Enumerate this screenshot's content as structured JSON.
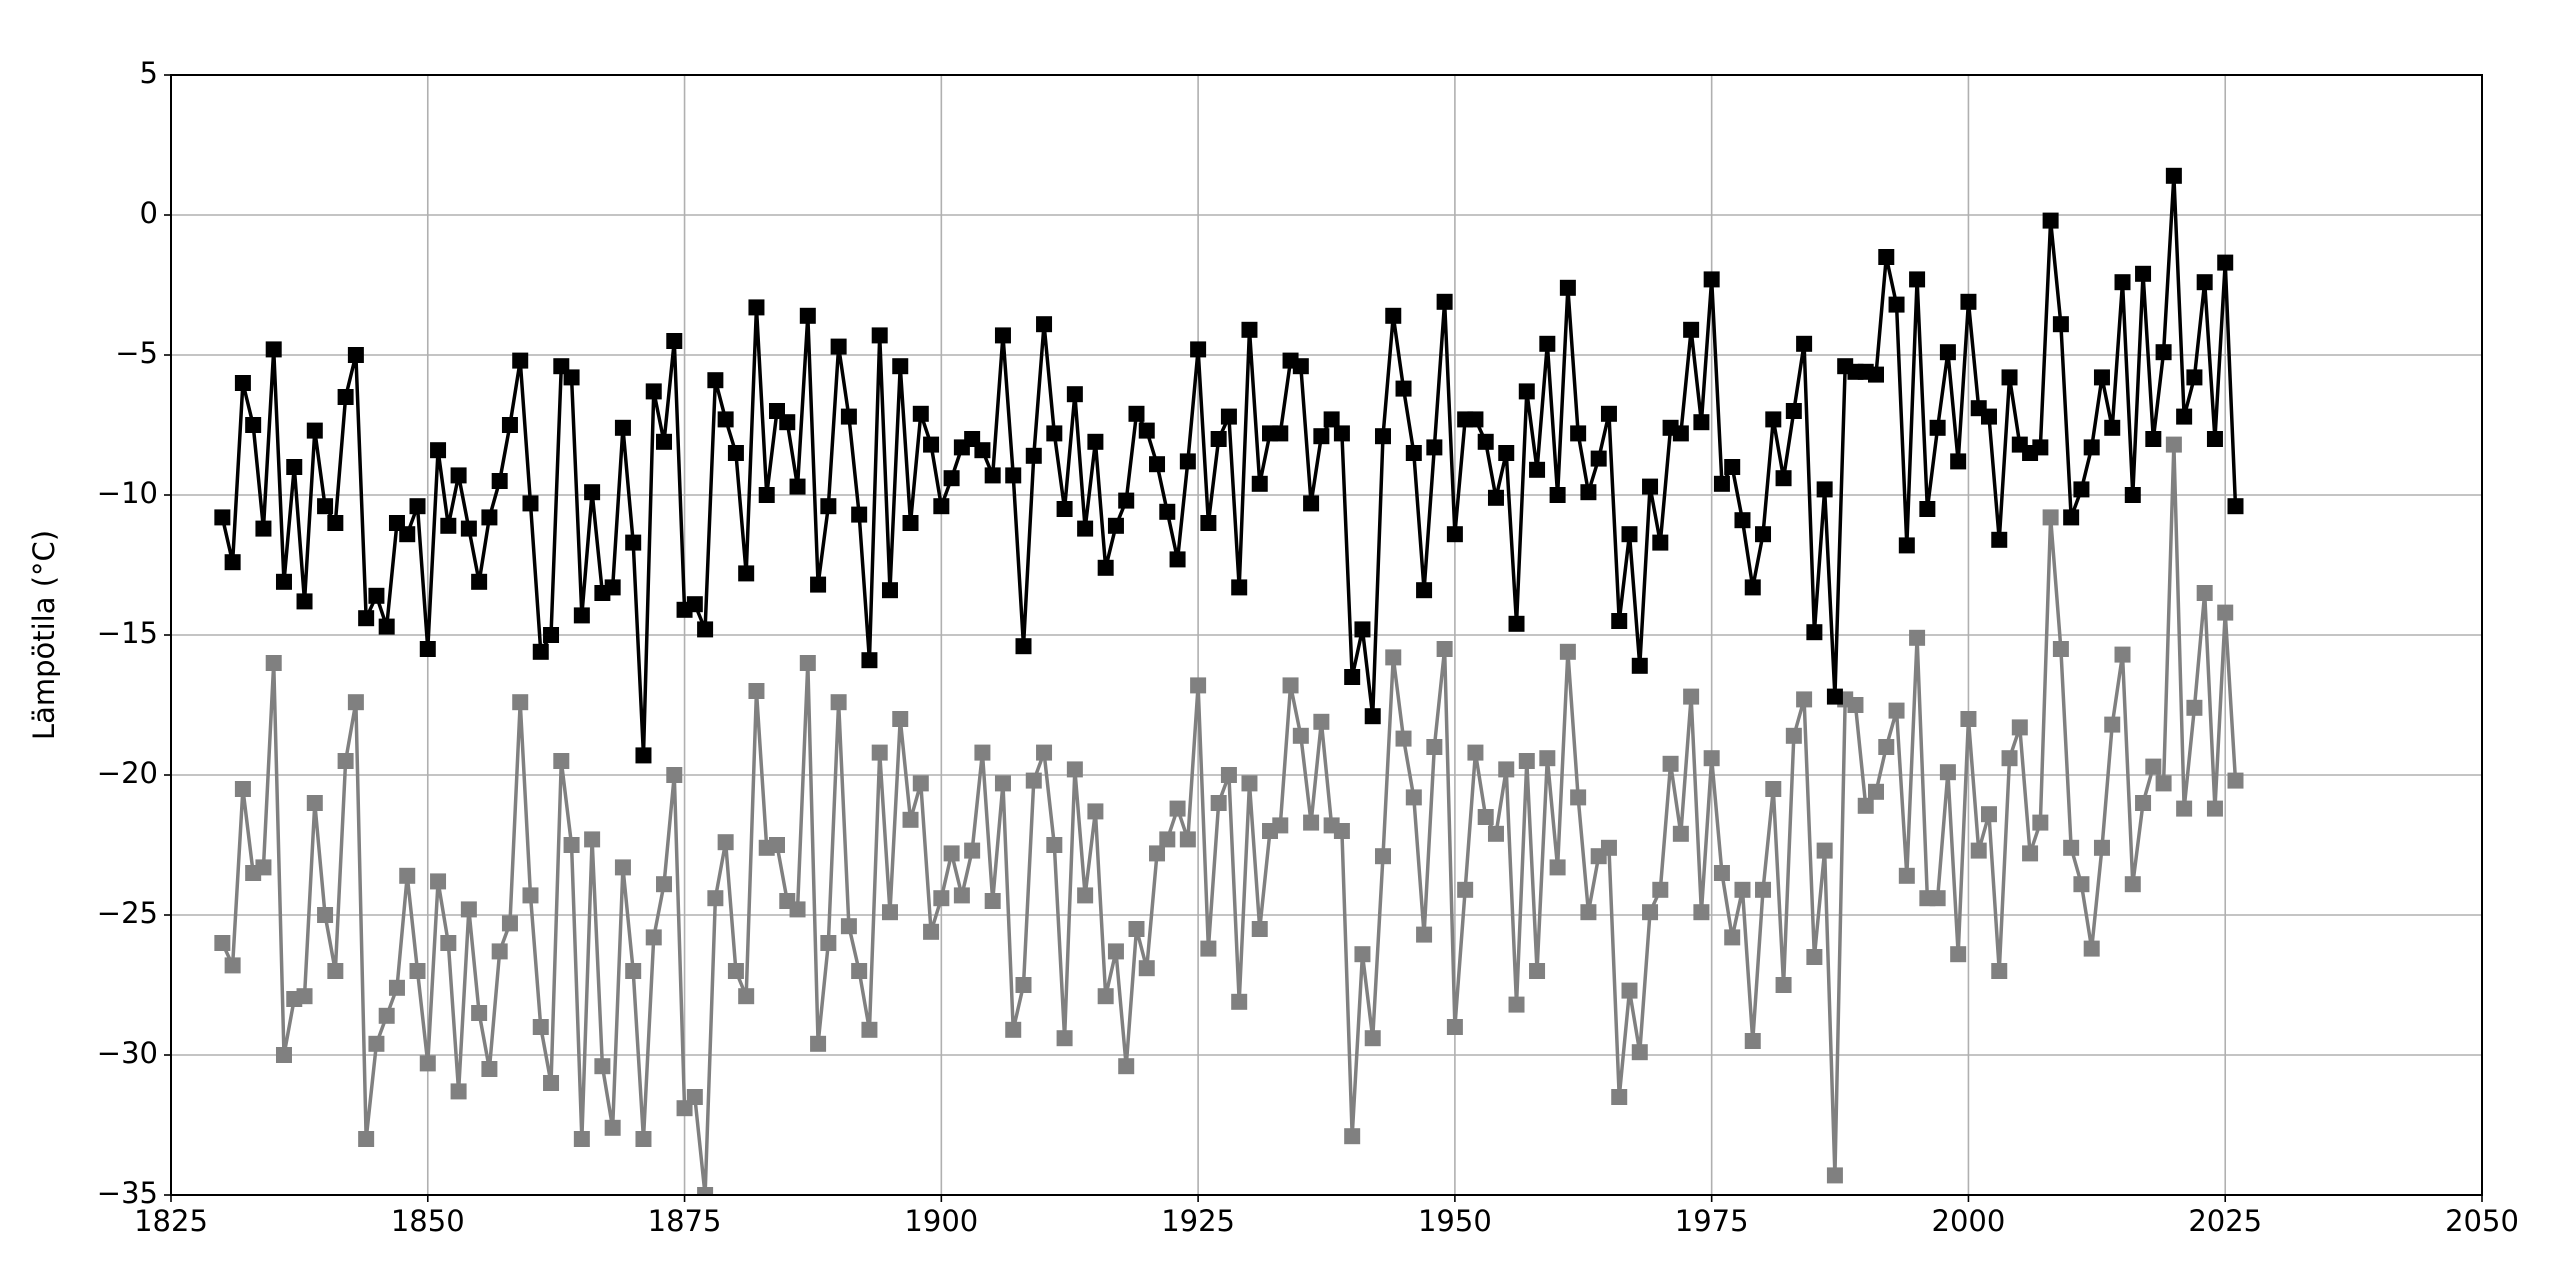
{
  "chart_data": {
    "type": "line",
    "y_label": "Lämpötila (°C)",
    "x": [
      1830,
      1831,
      1832,
      1833,
      1834,
      1835,
      1836,
      1837,
      1838,
      1839,
      1840,
      1841,
      1842,
      1843,
      1844,
      1845,
      1846,
      1847,
      1848,
      1849,
      1850,
      1851,
      1852,
      1853,
      1854,
      1855,
      1856,
      1857,
      1858,
      1859,
      1860,
      1861,
      1862,
      1863,
      1864,
      1865,
      1866,
      1867,
      1868,
      1869,
      1870,
      1871,
      1872,
      1873,
      1874,
      1875,
      1876,
      1877,
      1878,
      1879,
      1880,
      1881,
      1882,
      1883,
      1884,
      1885,
      1886,
      1887,
      1888,
      1889,
      1890,
      1891,
      1892,
      1893,
      1894,
      1895,
      1896,
      1897,
      1898,
      1899,
      1900,
      1901,
      1902,
      1903,
      1904,
      1905,
      1906,
      1907,
      1908,
      1909,
      1910,
      1911,
      1912,
      1913,
      1914,
      1915,
      1916,
      1917,
      1918,
      1919,
      1920,
      1921,
      1922,
      1923,
      1924,
      1925,
      1926,
      1927,
      1928,
      1929,
      1930,
      1931,
      1932,
      1933,
      1934,
      1935,
      1936,
      1937,
      1938,
      1939,
      1940,
      1941,
      1942,
      1943,
      1944,
      1945,
      1946,
      1947,
      1948,
      1949,
      1950,
      1951,
      1952,
      1953,
      1954,
      1955,
      1956,
      1957,
      1958,
      1959,
      1960,
      1961,
      1962,
      1963,
      1964,
      1965,
      1966,
      1967,
      1968,
      1969,
      1970,
      1971,
      1972,
      1973,
      1974,
      1975,
      1976,
      1977,
      1978,
      1979,
      1980,
      1981,
      1982,
      1983,
      1984,
      1985,
      1986,
      1987,
      1988,
      1989,
      1990,
      1991,
      1992,
      1993,
      1994,
      1995,
      1996,
      1997,
      1998,
      1999,
      2000,
      2001,
      2002,
      2003,
      2004,
      2005,
      2006,
      2007,
      2008,
      2009,
      2010,
      2011,
      2012,
      2013,
      2014,
      2015,
      2016,
      2017,
      2018,
      2019,
      2020,
      2021,
      2022,
      2023,
      2024,
      2025,
      2026
    ],
    "series": [
      {
        "color": "#808080",
        "values": [
          -26,
          -26.8,
          -20.5,
          -23.5,
          -23.3,
          -16,
          -30,
          -28,
          -27.9,
          -21,
          -25,
          -27,
          -19.5,
          -17.4,
          -33,
          -29.6,
          -28.6,
          -27.6,
          -23.6,
          -27,
          -30.3,
          -23.8,
          -26,
          -31.3,
          -24.8,
          -28.5,
          -30.5,
          -26.3,
          -25.3,
          -17.4,
          -24.3,
          -29,
          -31,
          -19.5,
          -22.5,
          -33,
          -22.3,
          -30.4,
          -32.6,
          -23.3,
          -27,
          -33,
          -25.8,
          -23.9,
          -20,
          -31.9,
          -31.5,
          -35,
          -24.4,
          -22.4,
          -27,
          -27.9,
          -17,
          -22.6,
          -22.5,
          -24.5,
          -24.8,
          -16,
          -29.6,
          -26,
          -17.4,
          -25.4,
          -27,
          -29.1,
          -19.2,
          -24.9,
          -18,
          -21.6,
          -20.3,
          -25.6,
          -24.4,
          -22.8,
          -24.3,
          -22.7,
          -19.2,
          -24.5,
          -20.3,
          -29.1,
          -27.5,
          -20.2,
          -19.2,
          -22.5,
          -29.4,
          -19.8,
          -24.3,
          -21.3,
          -27.9,
          -26.3,
          -30.4,
          -25.5,
          -26.9,
          -22.8,
          -22.3,
          -21.2,
          -22.3,
          -16.8,
          -26.2,
          -21,
          -20,
          -28.1,
          -20.3,
          -25.5,
          -22,
          -21.8,
          -16.8,
          -18.6,
          -21.7,
          -18.1,
          -21.8,
          -22,
          -32.9,
          -26.4,
          -29.4,
          -22.9,
          -15.8,
          -18.7,
          -20.8,
          -25.7,
          -19,
          -15.5,
          -29,
          -24.1,
          -19.2,
          -21.5,
          -22.1,
          -19.8,
          -28.2,
          -19.5,
          -27,
          -19.4,
          -23.3,
          -15.6,
          -20.8,
          -24.9,
          -22.9,
          -22.6,
          -31.5,
          -27.7,
          -29.9,
          -24.9,
          -24.1,
          -19.6,
          -22.1,
          -17.2,
          -24.9,
          -19.4,
          -23.5,
          -25.8,
          -24.1,
          -29.5,
          -24.1,
          -20.5,
          -27.5,
          -18.6,
          -17.3,
          -26.5,
          -22.7,
          -34.3,
          -17.3,
          -17.5,
          -21.1,
          -20.6,
          -19,
          -17.7,
          -23.6,
          -15.1,
          -24.4,
          -24.4,
          -19.9,
          -26.4,
          -18,
          -22.7,
          -21.4,
          -27,
          -19.4,
          -18.3,
          -22.8,
          -21.7,
          -10.8,
          -15.5,
          -22.6,
          -23.9,
          -26.2,
          -22.6,
          -18.2,
          -15.7,
          -23.9,
          -21,
          -19.7,
          -20.3,
          -8.2,
          -21.2,
          -17.6,
          -13.5,
          -21.2,
          -14.2,
          -20.2
        ]
      },
      {
        "color": "#000000",
        "values": [
          -10.8,
          -12.4,
          -6,
          -7.5,
          -11.2,
          -4.8,
          -13.1,
          -9,
          -13.8,
          -7.7,
          -10.4,
          -11,
          -6.5,
          -5,
          -14.4,
          -13.6,
          -14.7,
          -11,
          -11.4,
          -10.4,
          -15.5,
          -8.4,
          -11.1,
          -9.3,
          -11.2,
          -13.1,
          -10.8,
          -9.5,
          -7.5,
          -5.2,
          -10.3,
          -15.6,
          -15,
          -5.4,
          -5.8,
          -14.3,
          -9.9,
          -13.5,
          -13.3,
          -7.6,
          -11.7,
          -19.3,
          -6.3,
          -8.1,
          -4.5,
          -14.1,
          -13.9,
          -14.8,
          -5.9,
          -7.3,
          -8.5,
          -12.8,
          -3.3,
          -10,
          -7,
          -7.4,
          -9.7,
          -3.6,
          -13.2,
          -10.4,
          -4.7,
          -7.2,
          -10.7,
          -15.9,
          -4.3,
          -13.4,
          -5.4,
          -11,
          -7.1,
          -8.2,
          -10.4,
          -9.4,
          -8.3,
          -8,
          -8.4,
          -9.3,
          -4.3,
          -9.3,
          -15.4,
          -8.6,
          -3.9,
          -7.8,
          -10.5,
          -6.4,
          -11.2,
          -8.1,
          -12.6,
          -11.1,
          -10.2,
          -7.1,
          -7.7,
          -8.9,
          -10.6,
          -12.3,
          -8.8,
          -4.8,
          -11,
          -8,
          -7.2,
          -13.3,
          -4.1,
          -9.6,
          -7.8,
          -7.8,
          -5.2,
          -5.4,
          -10.3,
          -7.9,
          -7.3,
          -7.8,
          -16.5,
          -14.8,
          -17.9,
          -7.9,
          -3.6,
          -6.2,
          -8.5,
          -13.4,
          -8.3,
          -3.1,
          -11.4,
          -7.3,
          -7.3,
          -8.1,
          -10.1,
          -8.5,
          -14.6,
          -6.3,
          -9.1,
          -4.6,
          -10,
          -2.6,
          -7.8,
          -9.9,
          -8.7,
          -7.1,
          -14.5,
          -11.4,
          -16.1,
          -9.7,
          -11.7,
          -7.6,
          -7.8,
          -4.1,
          -7.4,
          -2.3,
          -9.6,
          -9,
          -10.9,
          -13.3,
          -11.4,
          -7.3,
          -9.4,
          -7,
          -4.6,
          -14.9,
          -9.8,
          -17.2,
          -5.4,
          -5.6,
          -5.6,
          -5.7,
          -1.5,
          -3.2,
          -11.8,
          -2.3,
          -10.5,
          -7.6,
          -4.9,
          -8.8,
          -3.1,
          -6.9,
          -7.2,
          -11.6,
          -5.8,
          -8.2,
          -8.5,
          -8.3,
          -0.2,
          -3.9,
          -10.8,
          -9.8,
          -8.3,
          -5.8,
          -7.6,
          -2.4,
          -10,
          -2.1,
          -8,
          -4.9,
          1.4,
          -7.2,
          -5.8,
          -2.4,
          -8,
          -1.7,
          -10.4
        ]
      }
    ],
    "xlim": [
      1825,
      2050
    ],
    "xticks": [
      1825,
      1850,
      1875,
      1900,
      1925,
      1950,
      1975,
      2000,
      2025,
      2050
    ],
    "ylim": [
      -35,
      5
    ],
    "yticks": [
      {
        "value": -35,
        "label": "−35"
      },
      {
        "value": -30,
        "label": "−30"
      },
      {
        "value": -25,
        "label": "−25"
      },
      {
        "value": -20,
        "label": "−20"
      },
      {
        "value": -15,
        "label": "−15"
      },
      {
        "value": -10,
        "label": "−10"
      },
      {
        "value": -5,
        "label": "−5"
      },
      0,
      5
    ],
    "grid": true
  }
}
